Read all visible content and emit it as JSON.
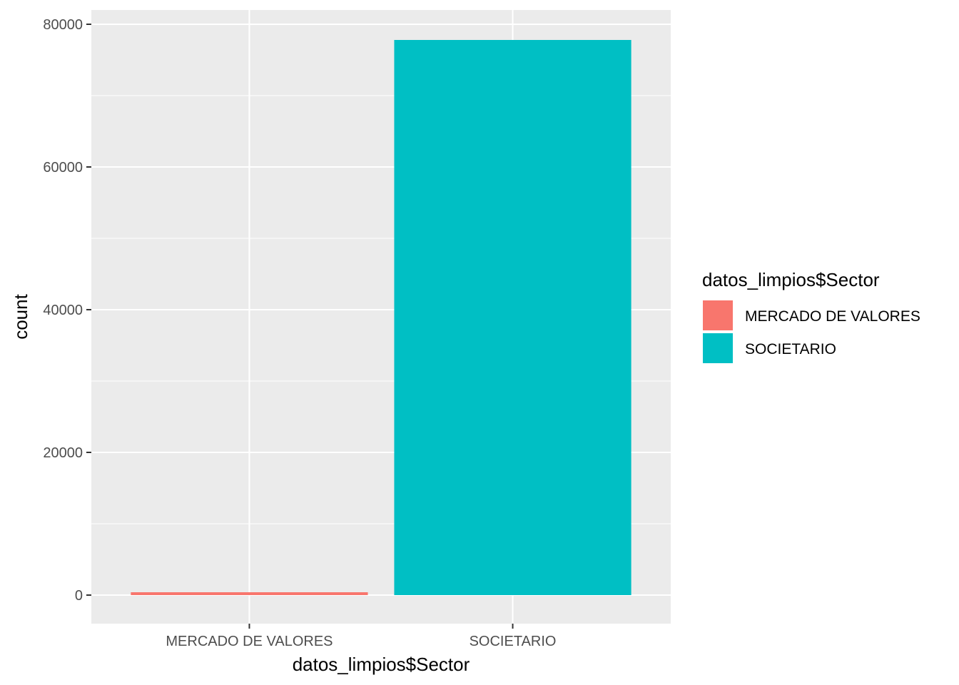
{
  "chart_data": {
    "type": "bar",
    "categories": [
      "MERCADO DE VALORES",
      "SOCIETARIO"
    ],
    "values": [
      400,
      77800
    ],
    "colors": [
      "#F8766D",
      "#00BFC4"
    ],
    "xlabel": "datos_limpios$Sector",
    "ylabel": "count",
    "ylim": [
      -4000,
      82000
    ],
    "yticks": [
      0,
      20000,
      40000,
      60000,
      80000
    ],
    "grid": true,
    "panel_background": "#EBEBEB",
    "legend": {
      "title": "datos_limpios$Sector",
      "position": "right",
      "entries": [
        {
          "label": "MERCADO DE VALORES",
          "color": "#F8766D"
        },
        {
          "label": "SOCIETARIO",
          "color": "#00BFC4"
        }
      ]
    }
  }
}
